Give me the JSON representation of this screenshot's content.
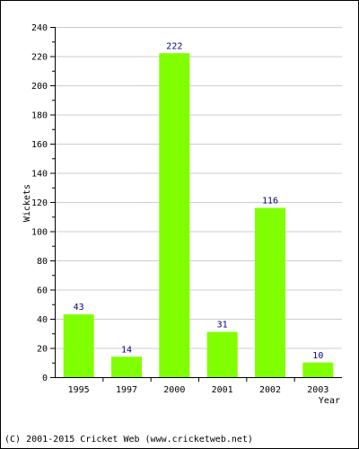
{
  "chart_data": {
    "type": "bar",
    "categories": [
      "1995",
      "1997",
      "2000",
      "2001",
      "2002",
      "2003"
    ],
    "values": [
      43,
      14,
      222,
      31,
      116,
      10
    ],
    "title": "",
    "xlabel": "Year",
    "ylabel": "Wickets",
    "ylim": [
      0,
      240
    ],
    "yticks": [
      0,
      20,
      40,
      60,
      80,
      100,
      120,
      140,
      160,
      180,
      200,
      220,
      240
    ],
    "grid": true,
    "bar_color": "#80ff00",
    "value_label_color": "#000080",
    "grid_color": "#cccccc"
  },
  "footer": {
    "copyright": "(C) 2001-2015 Cricket Web (www.cricketweb.net)"
  }
}
